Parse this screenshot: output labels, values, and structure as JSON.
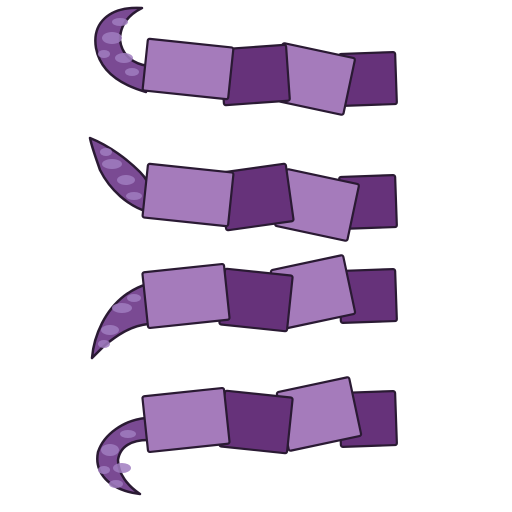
{
  "sprite_sheet": {
    "frame_count": 4,
    "palette": {
      "light_segment": "#a57bbb",
      "dark_segment": "#66327a",
      "tip_base": "#7a4a93",
      "tip_mottle": "#a07cc0",
      "outline": "#2a1a33"
    },
    "frames": [
      {
        "tip_pose": "curled-up"
      },
      {
        "tip_pose": "raised"
      },
      {
        "tip_pose": "lowered"
      },
      {
        "tip_pose": "curled-down"
      }
    ]
  }
}
